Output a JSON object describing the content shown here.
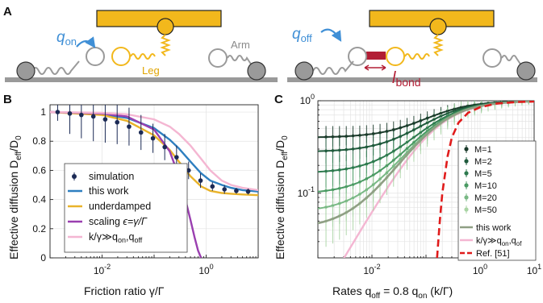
{
  "panel_labels": {
    "a": "A",
    "b": "B",
    "c": "C"
  },
  "schematic": {
    "left": {
      "rate_sym": "q",
      "rate_sub": "on",
      "leg_label": "Leg",
      "arm_label": "Arm"
    },
    "right": {
      "rate_sym": "q",
      "rate_sub": "off",
      "bond_sym": "l",
      "bond_sub": "bond"
    },
    "colors": {
      "cargo": "#f2b81c",
      "leg": "#f2b81c",
      "arm": "#9a9a9a",
      "rate": "#3f8fd6",
      "bond": "#b21e35",
      "track": "#9a9a9a"
    }
  },
  "chart_data": [
    {
      "type": "line",
      "panel": "B",
      "xlabel": "Friction ratio γ/Γ",
      "ylabel": "Effective diffusion D_eff/D_0",
      "xscale": "log",
      "xlim": [
        0.001,
        10
      ],
      "ylim": [
        0,
        1.05
      ],
      "xticks": [
        "10^-2",
        "10^0"
      ],
      "yticks": [
        "0",
        "0.2",
        "0.4",
        "0.6",
        "0.8",
        "1"
      ],
      "legend": {
        "simulation": "simulation",
        "this_work": "this work",
        "underdamped": "underdamped",
        "scaling_prefix": "scaling",
        "scaling_eq": "ϵ=γ/Γ",
        "limit_eq": "k/γ≫q",
        "limit_sub_on": "on",
        "limit_comma": ",q",
        "limit_sub_off": "off"
      },
      "series": [
        {
          "name": "simulation",
          "color": "#1b2a55",
          "x": [
            0.0014,
            0.0024,
            0.004,
            0.0068,
            0.0115,
            0.0195,
            0.033,
            0.056,
            0.095,
            0.16,
            0.27,
            0.46,
            0.78,
            1.32,
            2.25,
            3.8,
            6.4
          ],
          "y": [
            1.0,
            0.99,
            0.98,
            0.97,
            0.95,
            0.93,
            0.9,
            0.86,
            0.82,
            0.76,
            0.69,
            0.6,
            0.53,
            0.49,
            0.47,
            0.46,
            0.455
          ],
          "err": [
            0.06,
            0.14,
            0.16,
            0.17,
            0.16,
            0.15,
            0.13,
            0.12,
            0.1,
            0.09,
            0.08,
            0.06,
            0.05,
            0.03,
            0.03,
            0.02,
            0.02
          ]
        },
        {
          "name": "this work",
          "color": "#2e7fc0",
          "x": [
            0.001,
            0.003,
            0.01,
            0.03,
            0.1,
            0.2,
            0.3,
            0.5,
            0.8,
            1.2,
            2,
            3,
            5,
            10
          ],
          "y": [
            1.0,
            0.995,
            0.985,
            0.96,
            0.89,
            0.81,
            0.75,
            0.66,
            0.58,
            0.53,
            0.5,
            0.48,
            0.465,
            0.455
          ]
        },
        {
          "name": "underdamped",
          "color": "#e9b32a",
          "x": [
            0.001,
            0.01,
            0.03,
            0.1,
            0.2,
            0.3,
            0.5,
            0.8,
            1.2,
            2,
            3,
            5,
            10
          ],
          "y": [
            1.0,
            0.98,
            0.94,
            0.84,
            0.74,
            0.66,
            0.56,
            0.49,
            0.46,
            0.445,
            0.44,
            0.435,
            0.43
          ]
        },
        {
          "name": "scaling",
          "color": "#9a3fb0",
          "x": [
            0.001,
            0.01,
            0.03,
            0.1,
            0.2,
            0.3,
            0.4,
            0.5,
            0.6,
            0.7,
            0.8
          ],
          "y": [
            1.0,
            0.99,
            0.97,
            0.88,
            0.73,
            0.56,
            0.4,
            0.26,
            0.14,
            0.05,
            0.0
          ]
        },
        {
          "name": "k/γ≫q_on,q_off",
          "color": "#f4b6d2",
          "x": [
            0.001,
            0.01,
            0.03,
            0.1,
            0.2,
            0.3,
            0.5,
            0.8,
            1.2,
            2,
            3,
            5,
            10
          ],
          "y": [
            1.0,
            0.995,
            0.985,
            0.95,
            0.9,
            0.85,
            0.77,
            0.68,
            0.6,
            0.53,
            0.5,
            0.48,
            0.465
          ]
        }
      ]
    },
    {
      "type": "line",
      "panel": "C",
      "xlabel_prefix": "Rates q",
      "xlabel_sub1": "off",
      "xlabel_mid": " = 0.8 q",
      "xlabel_sub2": "on",
      "xlabel_suffix": " (k/Γ)",
      "ylabel": "Effective diffusion D_eff/D_0",
      "xscale": "log",
      "yscale": "log",
      "xlim": [
        0.001,
        10
      ],
      "ylim": [
        0.02,
        1
      ],
      "xticks": [
        "10^-2",
        "10^0",
        "10^1"
      ],
      "yticks": [
        "10^-1",
        "10^0"
      ],
      "legend": {
        "m1": "M=1",
        "m2": "M=2",
        "m5": "M=5",
        "m10": "M=10",
        "m20": "M=20",
        "m50": "M=50",
        "this_work": "this work",
        "limit": "k/γ≫q",
        "limit_sub_on": "on",
        "limit_comma": ",q",
        "limit_sub_off": "of",
        "ref": "Ref. [51]"
      },
      "series": [
        {
          "name": "M=1",
          "color": "#1a3a2a",
          "plateau": 0.4
        },
        {
          "name": "M=2",
          "color": "#1f5a3c",
          "plateau": 0.28
        },
        {
          "name": "M=5",
          "color": "#2d7a4e",
          "plateau": 0.165
        },
        {
          "name": "M=10",
          "color": "#4a9a63",
          "plateau": 0.098
        },
        {
          "name": "M=20",
          "color": "#78b884",
          "plateau": 0.062
        },
        {
          "name": "M=50",
          "color": "#a9d4a4",
          "plateau": 0.041
        },
        {
          "name": "this work",
          "color": "#8f9f84"
        },
        {
          "name": "k/γ≫q_on,q_off",
          "color": "#f4b6d2"
        },
        {
          "name": "Ref. [51]",
          "color": "#e01b1b",
          "x": [
            0.16,
            0.18,
            0.2,
            0.25,
            0.3,
            0.4,
            0.6,
            1,
            2,
            5,
            10
          ],
          "y": [
            0.02,
            0.05,
            0.1,
            0.25,
            0.4,
            0.58,
            0.74,
            0.85,
            0.93,
            0.97,
            0.98
          ]
        }
      ]
    }
  ]
}
